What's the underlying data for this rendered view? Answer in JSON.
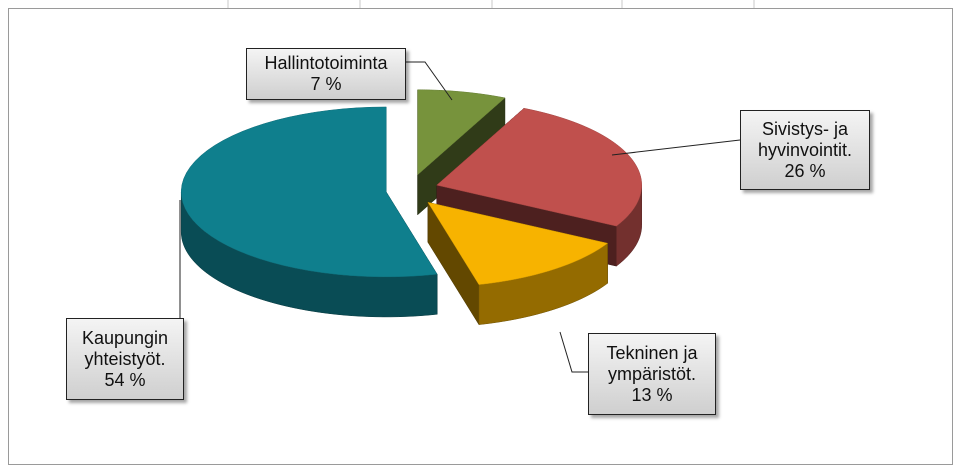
{
  "chart_data": {
    "type": "pie",
    "categories": [
      "Hallintotoiminta",
      "Sivistys- ja hyvinvointit.",
      "Tekninen ja ympäristöt.",
      "Kaupungin yhteistyöt."
    ],
    "values": [
      7,
      26,
      13,
      54
    ],
    "value_labels": [
      "7 %",
      "26 %",
      "13 %",
      "54 %"
    ],
    "colors": [
      "#77933c",
      "#c0504d",
      "#f7b300",
      "#0f7f8d"
    ]
  }
}
